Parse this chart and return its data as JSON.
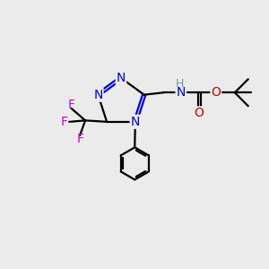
{
  "bg_color": "#ebebeb",
  "bond_color": "#000000",
  "N_color": "#0000dd",
  "O_color": "#cc0000",
  "F_color": "#cc00cc",
  "H_color": "#6699aa",
  "line_width": 1.6,
  "font_size": 10,
  "fig_size": [
    3.0,
    3.0
  ],
  "dpi": 100,
  "xlim": [
    0,
    10
  ],
  "ylim": [
    0,
    10
  ]
}
